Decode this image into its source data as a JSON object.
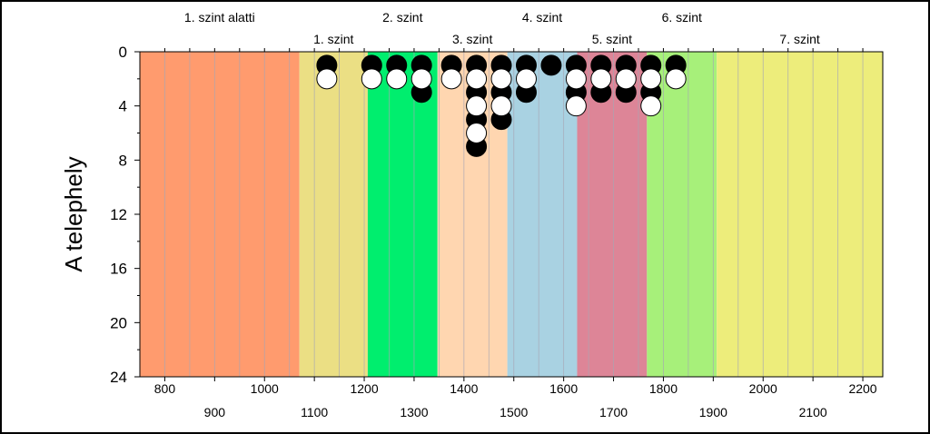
{
  "chart_data": {
    "type": "scatter",
    "xlim": [
      750,
      2240
    ],
    "ylim": [
      0,
      24
    ],
    "y_reversed": true,
    "ylabel": "A telephely",
    "xlabel": "",
    "y_ticks": [
      0,
      4,
      8,
      12,
      16,
      20,
      24
    ],
    "x_ticks_upper": [
      800,
      1000,
      1200,
      1400,
      1600,
      1800,
      2000,
      2200
    ],
    "x_ticks_lower": [
      900,
      1100,
      1300,
      1500,
      1700,
      1900,
      2100
    ],
    "zones": [
      {
        "label": "1. szint alatti",
        "from": 750,
        "to": 1070,
        "color": "#ff9b6e",
        "label_row": 1
      },
      {
        "label": "1. szint",
        "from": 1070,
        "to": 1207,
        "color": "#ebdf84",
        "label_row": 2
      },
      {
        "label": "2. szint",
        "from": 1207,
        "to": 1347,
        "color": "#00ee6e",
        "label_row": 1
      },
      {
        "label": "3. szint",
        "from": 1347,
        "to": 1487,
        "color": "#ffd6b0",
        "label_row": 2
      },
      {
        "label": "4. szint",
        "from": 1487,
        "to": 1627,
        "color": "#a9d2e2",
        "label_row": 1
      },
      {
        "label": "5. szint",
        "from": 1627,
        "to": 1767,
        "color": "#dd8597",
        "label_row": 2
      },
      {
        "label": "6. szint",
        "from": 1767,
        "to": 1907,
        "color": "#a7f07a",
        "label_row": 1
      },
      {
        "label": "7. szint",
        "from": 1907,
        "to": 2240,
        "color": "#eded7b",
        "label_row": 2
      }
    ],
    "series": [
      {
        "fill": "#000000",
        "points": [
          [
            1125,
            1
          ],
          [
            1215,
            1
          ],
          [
            1265,
            1
          ],
          [
            1315,
            1
          ],
          [
            1315,
            3
          ],
          [
            1375,
            1
          ],
          [
            1425,
            1
          ],
          [
            1425,
            3
          ],
          [
            1425,
            5
          ],
          [
            1425,
            7
          ],
          [
            1475,
            1
          ],
          [
            1475,
            3
          ],
          [
            1475,
            5
          ],
          [
            1525,
            1
          ],
          [
            1525,
            3
          ],
          [
            1575,
            1
          ],
          [
            1625,
            1
          ],
          [
            1625,
            3
          ],
          [
            1675,
            1
          ],
          [
            1675,
            3
          ],
          [
            1725,
            1
          ],
          [
            1725,
            3
          ],
          [
            1775,
            1
          ],
          [
            1775,
            3
          ],
          [
            1825,
            1
          ]
        ]
      },
      {
        "fill": "#ffffff",
        "points": [
          [
            1125,
            2
          ],
          [
            1215,
            2
          ],
          [
            1265,
            2
          ],
          [
            1315,
            2
          ],
          [
            1375,
            2
          ],
          [
            1425,
            2
          ],
          [
            1425,
            4
          ],
          [
            1425,
            6
          ],
          [
            1475,
            2
          ],
          [
            1475,
            4
          ],
          [
            1525,
            2
          ],
          [
            1625,
            2
          ],
          [
            1625,
            4
          ],
          [
            1675,
            2
          ],
          [
            1725,
            2
          ],
          [
            1775,
            2
          ],
          [
            1775,
            4
          ],
          [
            1825,
            2
          ]
        ]
      }
    ]
  }
}
